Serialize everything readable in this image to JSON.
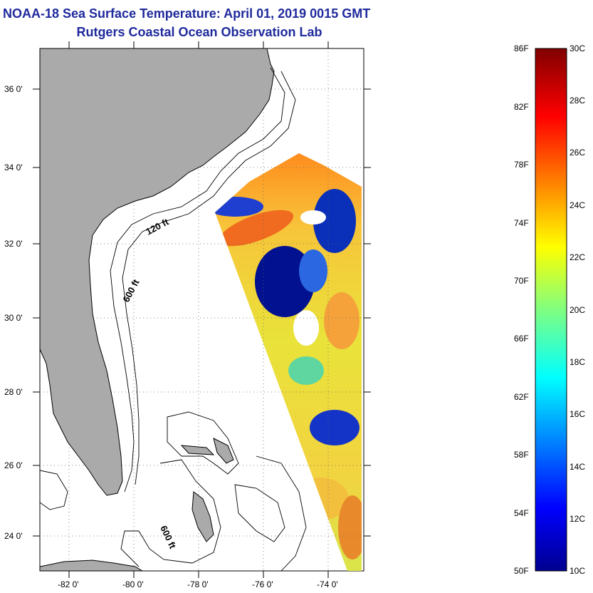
{
  "title": "NOAA-18 Sea Surface Temperature:  April 01, 2019 0015 GMT",
  "subtitle": "Rutgers Coastal Ocean Observation Lab",
  "map": {
    "lat_labels": [
      "36 0'",
      "34 0'",
      "32 0'",
      "30 0'",
      "28 0'",
      "26 0'",
      "24 0'"
    ],
    "lon_labels": [
      "-82 0'",
      "-80 0'",
      "-78 0'",
      "-76 0'",
      "-74 0'"
    ],
    "contours": [
      "120 ft",
      "600 ft",
      "600 ft"
    ],
    "land_color": "#aaaaaa",
    "grid": "dotted"
  },
  "colorbar": {
    "f_labels": [
      "86F",
      "82F",
      "78F",
      "74F",
      "70F",
      "66F",
      "62F",
      "58F",
      "54F",
      "50F"
    ],
    "c_labels": [
      "30C",
      "28C",
      "26C",
      "24C",
      "22C",
      "20C",
      "18C",
      "16C",
      "14C",
      "12C",
      "10C"
    ],
    "colormap": "jet"
  }
}
